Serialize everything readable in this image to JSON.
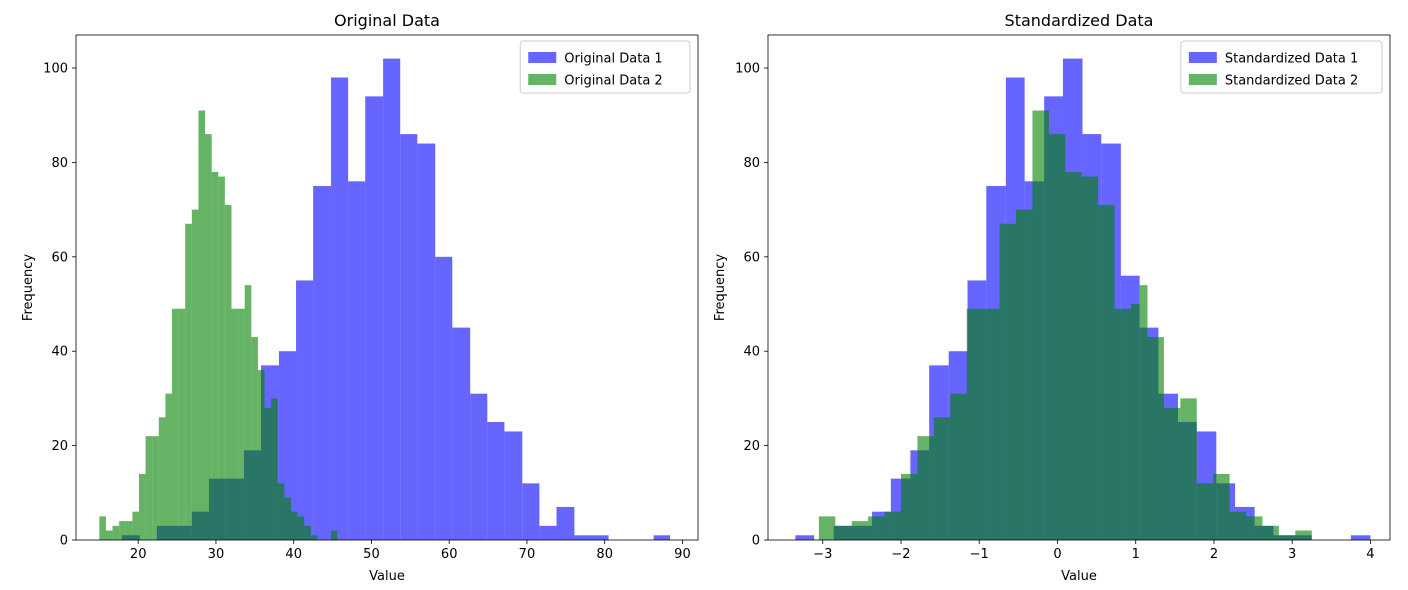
{
  "chart_data": [
    {
      "type": "histogram",
      "title": "Original Data",
      "xlabel": "Value",
      "ylabel": "Frequency",
      "xlim": [
        12,
        92
      ],
      "ylim": [
        0,
        107
      ],
      "xticks": [
        20,
        30,
        40,
        50,
        60,
        70,
        80,
        90
      ],
      "yticks": [
        0,
        20,
        40,
        60,
        80,
        100
      ],
      "legend_position": "top-right",
      "grid": false,
      "series": [
        {
          "name": "Original Data 1",
          "color": "#0000ff",
          "opacity": 0.6,
          "bins": [
            [
              17.9,
              20.2,
              1
            ],
            [
              22.4,
              24.6,
              3
            ],
            [
              24.6,
              26.9,
              3
            ],
            [
              26.9,
              29.1,
              6
            ],
            [
              29.1,
              31.4,
              13
            ],
            [
              31.4,
              33.6,
              13
            ],
            [
              33.6,
              35.8,
              19
            ],
            [
              35.8,
              38.1,
              37
            ],
            [
              38.1,
              40.3,
              40
            ],
            [
              40.3,
              42.5,
              55
            ],
            [
              42.5,
              44.8,
              75
            ],
            [
              44.8,
              47.0,
              98
            ],
            [
              47.0,
              49.2,
              76
            ],
            [
              49.2,
              51.5,
              94
            ],
            [
              51.5,
              53.7,
              102
            ],
            [
              53.7,
              55.9,
              86
            ],
            [
              55.9,
              58.2,
              84
            ],
            [
              58.2,
              60.4,
              60
            ],
            [
              60.4,
              62.7,
              45
            ],
            [
              62.7,
              64.9,
              31
            ],
            [
              64.9,
              67.1,
              25
            ],
            [
              67.1,
              69.4,
              23
            ],
            [
              69.4,
              71.6,
              12
            ],
            [
              71.6,
              73.8,
              3
            ],
            [
              73.8,
              76.1,
              7
            ],
            [
              76.1,
              78.3,
              1
            ],
            [
              78.3,
              80.5,
              1
            ],
            [
              86.3,
              88.4,
              1
            ]
          ]
        },
        {
          "name": "Original Data 2",
          "color": "#008000",
          "opacity": 0.6,
          "bins": [
            [
              15.0,
              15.85,
              5
            ],
            [
              15.85,
              16.7,
              2
            ],
            [
              16.7,
              17.55,
              3
            ],
            [
              17.55,
              18.4,
              4
            ],
            [
              18.4,
              19.25,
              4
            ],
            [
              19.25,
              20.1,
              6
            ],
            [
              20.1,
              20.95,
              14
            ],
            [
              20.95,
              21.8,
              22
            ],
            [
              21.8,
              22.65,
              22
            ],
            [
              22.65,
              23.5,
              26
            ],
            [
              23.5,
              24.35,
              31
            ],
            [
              24.35,
              25.2,
              49
            ],
            [
              25.2,
              26.05,
              49
            ],
            [
              26.05,
              26.9,
              67
            ],
            [
              26.9,
              27.75,
              70
            ],
            [
              27.75,
              28.6,
              91
            ],
            [
              28.6,
              29.45,
              86
            ],
            [
              29.45,
              30.3,
              78
            ],
            [
              30.3,
              31.15,
              77
            ],
            [
              31.15,
              32.0,
              71
            ],
            [
              32.0,
              32.85,
              49
            ],
            [
              32.85,
              33.7,
              49
            ],
            [
              33.7,
              34.55,
              54
            ],
            [
              34.55,
              35.4,
              43
            ],
            [
              35.4,
              36.25,
              36
            ],
            [
              36.25,
              37.1,
              28
            ],
            [
              37.1,
              37.95,
              30
            ],
            [
              37.95,
              38.8,
              12
            ],
            [
              38.8,
              39.65,
              9
            ],
            [
              39.65,
              40.5,
              6
            ],
            [
              40.5,
              41.35,
              5
            ],
            [
              41.35,
              42.2,
              3
            ],
            [
              42.2,
              43.05,
              1
            ],
            [
              44.8,
              45.6,
              2
            ]
          ]
        }
      ]
    },
    {
      "type": "histogram",
      "title": "Standardized Data",
      "xlabel": "Value",
      "ylabel": "Frequency",
      "xlim": [
        -3.7,
        4.25
      ],
      "ylim": [
        0,
        107
      ],
      "xticks": [
        -3,
        -2,
        -1,
        0,
        1,
        2,
        3,
        4
      ],
      "yticks": [
        0,
        20,
        40,
        60,
        80,
        100
      ],
      "legend_position": "top-right",
      "grid": false,
      "series": [
        {
          "name": "Standardized Data 1",
          "color": "#0000ff",
          "opacity": 0.6,
          "bins": [
            [
              -3.35,
              -3.11,
              1
            ],
            [
              -2.86,
              -2.62,
              3
            ],
            [
              -2.62,
              -2.37,
              3
            ],
            [
              -2.37,
              -2.13,
              6
            ],
            [
              -2.13,
              -1.88,
              13
            ],
            [
              -1.88,
              -1.64,
              19
            ],
            [
              -1.64,
              -1.39,
              37
            ],
            [
              -1.39,
              -1.15,
              40
            ],
            [
              -1.15,
              -0.91,
              55
            ],
            [
              -0.91,
              -0.66,
              75
            ],
            [
              -0.66,
              -0.42,
              98
            ],
            [
              -0.42,
              -0.17,
              76
            ],
            [
              -0.17,
              0.07,
              94
            ],
            [
              0.07,
              0.32,
              102
            ],
            [
              0.32,
              0.56,
              86
            ],
            [
              0.56,
              0.81,
              84
            ],
            [
              0.81,
              1.05,
              56
            ],
            [
              1.05,
              1.29,
              45
            ],
            [
              1.29,
              1.54,
              31
            ],
            [
              1.54,
              1.78,
              25
            ],
            [
              1.78,
              2.03,
              23
            ],
            [
              2.03,
              2.27,
              12
            ],
            [
              2.27,
              2.52,
              7
            ],
            [
              2.52,
              2.76,
              3
            ],
            [
              2.76,
              3.01,
              1
            ],
            [
              3.01,
              3.25,
              1
            ],
            [
              3.75,
              4.0,
              1
            ]
          ]
        },
        {
          "name": "Standardized Data 2",
          "color": "#008000",
          "opacity": 0.6,
          "bins": [
            [
              -3.05,
              -2.84,
              5
            ],
            [
              -2.84,
              -2.63,
              3
            ],
            [
              -2.63,
              -2.42,
              4
            ],
            [
              -2.42,
              -2.21,
              5
            ],
            [
              -2.21,
              -2.0,
              6
            ],
            [
              -2.0,
              -1.79,
              14
            ],
            [
              -1.79,
              -1.58,
              22
            ],
            [
              -1.58,
              -1.37,
              26
            ],
            [
              -1.37,
              -1.16,
              31
            ],
            [
              -1.16,
              -0.95,
              49
            ],
            [
              -0.95,
              -0.74,
              49
            ],
            [
              -0.74,
              -0.53,
              67
            ],
            [
              -0.53,
              -0.32,
              70
            ],
            [
              -0.32,
              -0.11,
              91
            ],
            [
              -0.11,
              0.1,
              86
            ],
            [
              0.1,
              0.31,
              78
            ],
            [
              0.31,
              0.52,
              77
            ],
            [
              0.52,
              0.73,
              71
            ],
            [
              0.73,
              0.94,
              49
            ],
            [
              0.94,
              1.05,
              50
            ],
            [
              1.05,
              1.15,
              54
            ],
            [
              1.15,
              1.36,
              43
            ],
            [
              1.36,
              1.57,
              28
            ],
            [
              1.57,
              1.78,
              30
            ],
            [
              1.78,
              1.99,
              12
            ],
            [
              1.99,
              2.2,
              14
            ],
            [
              2.2,
              2.41,
              6
            ],
            [
              2.41,
              2.62,
              5
            ],
            [
              2.62,
              2.83,
              3
            ],
            [
              2.83,
              3.04,
              1
            ],
            [
              3.04,
              3.25,
              2
            ]
          ]
        }
      ]
    }
  ]
}
